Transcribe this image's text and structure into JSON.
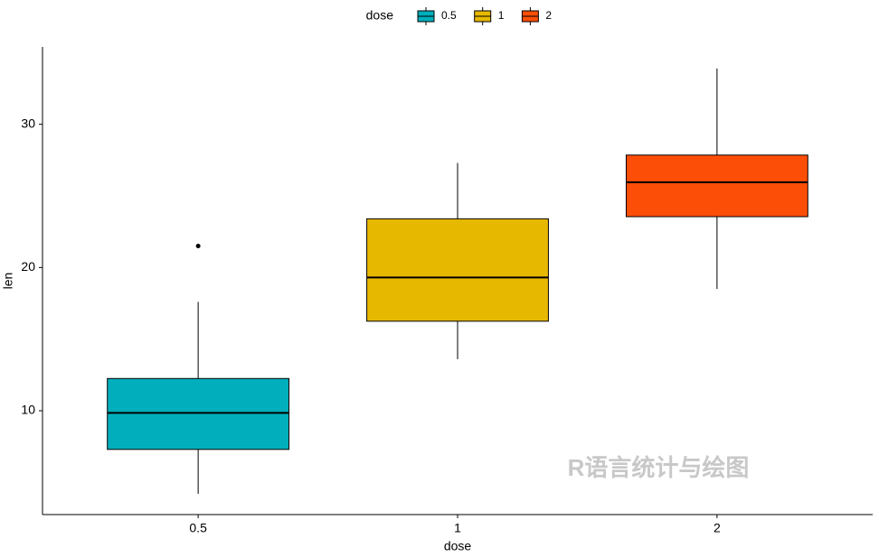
{
  "chart_data": {
    "type": "box",
    "legend_title": "dose",
    "x_label": "dose",
    "y_label": "len",
    "categories": [
      "0.5",
      "1",
      "2"
    ],
    "colors": [
      "#00AFBB",
      "#E7B800",
      "#FC4E07"
    ],
    "boxes": [
      {
        "min": 4.2,
        "q1": 7.3,
        "median": 9.85,
        "q3": 12.25,
        "max": 17.6,
        "outliers": [
          21.5
        ]
      },
      {
        "min": 13.6,
        "q1": 16.25,
        "median": 19.3,
        "q3": 23.4,
        "max": 27.3,
        "outliers": []
      },
      {
        "min": 18.5,
        "q1": 23.55,
        "median": 25.95,
        "q3": 27.85,
        "max": 33.9,
        "outliers": []
      }
    ],
    "ylim": [
      2.75,
      35.4
    ],
    "yticks": [
      10,
      20,
      30
    ],
    "annotation": "R语言统计与绘图"
  }
}
